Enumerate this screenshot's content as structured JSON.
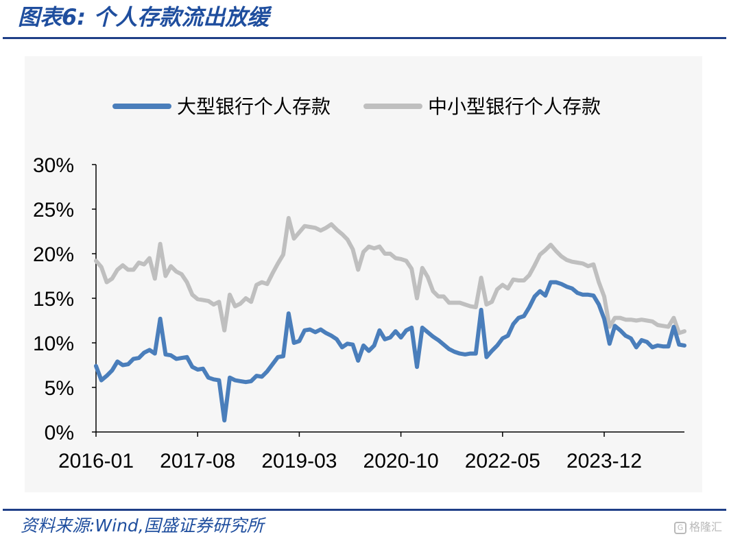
{
  "header": {
    "title": "图表6:  个人存款流出放缓"
  },
  "footer": {
    "source": "资料来源:Wind,国盛证券研究所",
    "watermark": "格隆汇"
  },
  "chart_data": {
    "type": "line",
    "title": "图表6:  个人存款流出放缓",
    "xlabel": "",
    "ylabel": "",
    "ylim": [
      0,
      30
    ],
    "y_ticks": [
      "0%",
      "5%",
      "10%",
      "15%",
      "20%",
      "25%",
      "30%"
    ],
    "x_tick_labels": [
      "2016-01",
      "2017-08",
      "2019-03",
      "2020-10",
      "2022-05",
      "2023-12"
    ],
    "x_range": [
      "2016-01",
      "2024-12"
    ],
    "legend": "top",
    "grid": false,
    "series": [
      {
        "name": "大型银行个人存款",
        "color": "#4a7ebb",
        "points": [
          [
            "2016-01",
            7.4
          ],
          [
            "2016-02",
            5.8
          ],
          [
            "2016-03",
            6.3
          ],
          [
            "2016-04",
            6.9
          ],
          [
            "2016-05",
            7.9
          ],
          [
            "2016-06",
            7.5
          ],
          [
            "2016-07",
            7.6
          ],
          [
            "2016-08",
            8.2
          ],
          [
            "2016-09",
            8.3
          ],
          [
            "2016-10",
            8.9
          ],
          [
            "2016-11",
            9.2
          ],
          [
            "2016-12",
            8.8
          ],
          [
            "2017-01",
            12.7
          ],
          [
            "2017-02",
            8.7
          ],
          [
            "2017-03",
            8.6
          ],
          [
            "2017-04",
            8.2
          ],
          [
            "2017-05",
            8.3
          ],
          [
            "2017-06",
            8.4
          ],
          [
            "2017-07",
            7.3
          ],
          [
            "2017-08",
            7.0
          ],
          [
            "2017-09",
            7.1
          ],
          [
            "2017-10",
            6.1
          ],
          [
            "2017-11",
            5.9
          ],
          [
            "2017-12",
            5.8
          ],
          [
            "2018-01",
            1.3
          ],
          [
            "2018-02",
            6.1
          ],
          [
            "2018-03",
            5.8
          ],
          [
            "2018-04",
            5.7
          ],
          [
            "2018-05",
            5.6
          ],
          [
            "2018-06",
            5.7
          ],
          [
            "2018-07",
            6.3
          ],
          [
            "2018-08",
            6.2
          ],
          [
            "2018-09",
            6.8
          ],
          [
            "2018-10",
            7.6
          ],
          [
            "2018-11",
            8.4
          ],
          [
            "2018-12",
            8.5
          ],
          [
            "2019-01",
            13.3
          ],
          [
            "2019-02",
            10.0
          ],
          [
            "2019-03",
            10.2
          ],
          [
            "2019-04",
            11.4
          ],
          [
            "2019-05",
            11.5
          ],
          [
            "2019-06",
            11.2
          ],
          [
            "2019-07",
            11.5
          ],
          [
            "2019-08",
            11.1
          ],
          [
            "2019-09",
            10.8
          ],
          [
            "2019-10",
            10.4
          ],
          [
            "2019-11",
            9.5
          ],
          [
            "2019-12",
            9.9
          ],
          [
            "2020-01",
            9.8
          ],
          [
            "2020-02",
            8.0
          ],
          [
            "2020-03",
            9.7
          ],
          [
            "2020-04",
            9.1
          ],
          [
            "2020-05",
            9.7
          ],
          [
            "2020-06",
            11.4
          ],
          [
            "2020-07",
            10.4
          ],
          [
            "2020-08",
            10.6
          ],
          [
            "2020-09",
            11.3
          ],
          [
            "2020-10",
            10.6
          ],
          [
            "2020-11",
            11.4
          ],
          [
            "2020-12",
            11.7
          ],
          [
            "2021-01",
            7.3
          ],
          [
            "2021-02",
            11.7
          ],
          [
            "2021-03",
            11.2
          ],
          [
            "2021-04",
            10.7
          ],
          [
            "2021-05",
            10.3
          ],
          [
            "2021-06",
            9.8
          ],
          [
            "2021-07",
            9.3
          ],
          [
            "2021-08",
            9.0
          ],
          [
            "2021-09",
            8.8
          ],
          [
            "2021-10",
            8.7
          ],
          [
            "2021-11",
            8.8
          ],
          [
            "2021-12",
            8.8
          ],
          [
            "2022-01",
            13.7
          ],
          [
            "2022-02",
            8.4
          ],
          [
            "2022-03",
            9.1
          ],
          [
            "2022-04",
            9.7
          ],
          [
            "2022-05",
            10.5
          ],
          [
            "2022-06",
            10.8
          ],
          [
            "2022-07",
            12.1
          ],
          [
            "2022-08",
            12.8
          ],
          [
            "2022-09",
            13.0
          ],
          [
            "2022-10",
            14.0
          ],
          [
            "2022-11",
            15.2
          ],
          [
            "2022-12",
            15.8
          ],
          [
            "2023-01",
            15.3
          ],
          [
            "2023-02",
            16.8
          ],
          [
            "2023-03",
            16.8
          ],
          [
            "2023-04",
            16.6
          ],
          [
            "2023-05",
            16.3
          ],
          [
            "2023-06",
            16.1
          ],
          [
            "2023-07",
            15.6
          ],
          [
            "2023-08",
            15.4
          ],
          [
            "2023-09",
            15.4
          ],
          [
            "2023-10",
            15.3
          ],
          [
            "2023-11",
            14.3
          ],
          [
            "2023-12",
            12.7
          ],
          [
            "2024-01",
            9.9
          ],
          [
            "2024-02",
            11.9
          ],
          [
            "2024-03",
            11.4
          ],
          [
            "2024-04",
            10.8
          ],
          [
            "2024-05",
            10.5
          ],
          [
            "2024-06",
            9.5
          ],
          [
            "2024-07",
            10.3
          ],
          [
            "2024-08",
            10.1
          ],
          [
            "2024-09",
            9.5
          ],
          [
            "2024-10",
            9.7
          ],
          [
            "2024-11",
            9.6
          ],
          [
            "2024-12",
            9.6
          ],
          [
            "2025-01",
            11.8
          ],
          [
            "2025-02",
            9.8
          ],
          [
            "2025-03",
            9.7
          ]
        ]
      },
      {
        "name": "中小型银行个人存款",
        "color": "#bfbfbf",
        "points": [
          [
            "2016-01",
            19.2
          ],
          [
            "2016-02",
            18.5
          ],
          [
            "2016-03",
            16.8
          ],
          [
            "2016-04",
            17.2
          ],
          [
            "2016-05",
            18.2
          ],
          [
            "2016-06",
            18.7
          ],
          [
            "2016-07",
            18.2
          ],
          [
            "2016-08",
            18.2
          ],
          [
            "2016-09",
            19.0
          ],
          [
            "2016-10",
            18.8
          ],
          [
            "2016-11",
            19.5
          ],
          [
            "2016-12",
            17.2
          ],
          [
            "2017-01",
            21.1
          ],
          [
            "2017-02",
            17.5
          ],
          [
            "2017-03",
            18.6
          ],
          [
            "2017-04",
            18.0
          ],
          [
            "2017-05",
            17.7
          ],
          [
            "2017-06",
            16.8
          ],
          [
            "2017-07",
            15.4
          ],
          [
            "2017-08",
            14.9
          ],
          [
            "2017-09",
            14.8
          ],
          [
            "2017-10",
            14.7
          ],
          [
            "2017-11",
            14.3
          ],
          [
            "2017-12",
            14.6
          ],
          [
            "2018-01",
            11.4
          ],
          [
            "2018-02",
            15.4
          ],
          [
            "2018-03",
            14.1
          ],
          [
            "2018-04",
            14.4
          ],
          [
            "2018-05",
            15.0
          ],
          [
            "2018-06",
            14.6
          ],
          [
            "2018-07",
            16.5
          ],
          [
            "2018-08",
            16.8
          ],
          [
            "2018-09",
            16.6
          ],
          [
            "2018-10",
            17.8
          ],
          [
            "2018-11",
            18.9
          ],
          [
            "2018-12",
            19.9
          ],
          [
            "2019-01",
            24.0
          ],
          [
            "2019-02",
            21.7
          ],
          [
            "2019-03",
            22.4
          ],
          [
            "2019-04",
            23.1
          ],
          [
            "2019-05",
            23.0
          ],
          [
            "2019-06",
            22.9
          ],
          [
            "2019-07",
            22.6
          ],
          [
            "2019-08",
            22.9
          ],
          [
            "2019-09",
            23.3
          ],
          [
            "2019-10",
            22.7
          ],
          [
            "2019-11",
            22.2
          ],
          [
            "2019-12",
            21.6
          ],
          [
            "2020-01",
            20.5
          ],
          [
            "2020-02",
            18.2
          ],
          [
            "2020-03",
            20.2
          ],
          [
            "2020-04",
            20.8
          ],
          [
            "2020-05",
            20.6
          ],
          [
            "2020-06",
            20.8
          ],
          [
            "2020-07",
            20.0
          ],
          [
            "2020-08",
            20.0
          ],
          [
            "2020-09",
            19.5
          ],
          [
            "2020-10",
            19.4
          ],
          [
            "2020-11",
            19.2
          ],
          [
            "2020-12",
            18.3
          ],
          [
            "2021-01",
            15.0
          ],
          [
            "2021-02",
            18.4
          ],
          [
            "2021-03",
            17.4
          ],
          [
            "2021-04",
            15.8
          ],
          [
            "2021-05",
            15.2
          ],
          [
            "2021-06",
            15.2
          ],
          [
            "2021-07",
            14.5
          ],
          [
            "2021-08",
            14.5
          ],
          [
            "2021-09",
            14.5
          ],
          [
            "2021-10",
            14.3
          ],
          [
            "2021-11",
            14.1
          ],
          [
            "2021-12",
            14.0
          ],
          [
            "2022-01",
            17.3
          ],
          [
            "2022-02",
            14.3
          ],
          [
            "2022-03",
            14.6
          ],
          [
            "2022-04",
            16.0
          ],
          [
            "2022-05",
            16.5
          ],
          [
            "2022-06",
            16.1
          ],
          [
            "2022-07",
            17.1
          ],
          [
            "2022-08",
            17.0
          ],
          [
            "2022-09",
            17.0
          ],
          [
            "2022-10",
            17.6
          ],
          [
            "2022-11",
            18.7
          ],
          [
            "2022-12",
            19.9
          ],
          [
            "2023-01",
            20.4
          ],
          [
            "2023-02",
            21.0
          ],
          [
            "2023-03",
            20.3
          ],
          [
            "2023-04",
            19.7
          ],
          [
            "2023-05",
            19.3
          ],
          [
            "2023-06",
            19.1
          ],
          [
            "2023-07",
            19.0
          ],
          [
            "2023-08",
            18.9
          ],
          [
            "2023-09",
            18.6
          ],
          [
            "2023-10",
            18.8
          ],
          [
            "2023-11",
            16.8
          ],
          [
            "2023-12",
            15.2
          ],
          [
            "2024-01",
            11.8
          ],
          [
            "2024-02",
            12.8
          ],
          [
            "2024-03",
            12.8
          ],
          [
            "2024-04",
            12.6
          ],
          [
            "2024-05",
            12.6
          ],
          [
            "2024-06",
            12.5
          ],
          [
            "2024-07",
            12.6
          ],
          [
            "2024-08",
            12.5
          ],
          [
            "2024-09",
            12.4
          ],
          [
            "2024-10",
            12.0
          ],
          [
            "2024-11",
            11.9
          ],
          [
            "2024-12",
            11.8
          ],
          [
            "2025-01",
            12.8
          ],
          [
            "2025-02",
            11.1
          ],
          [
            "2025-03",
            11.3
          ]
        ]
      }
    ]
  }
}
